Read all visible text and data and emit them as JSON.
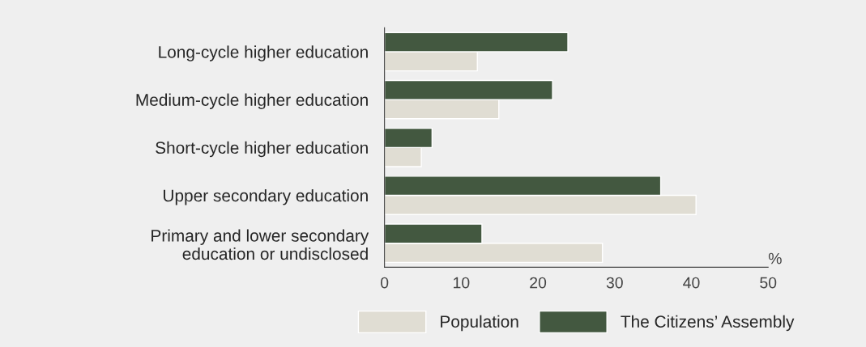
{
  "chart_data": {
    "type": "bar",
    "orientation": "horizontal",
    "categories": [
      "Long-cycle higher education",
      "Medium-cycle higher education",
      "Short-cycle higher education",
      "Upper secondary education",
      "Primary and lower secondary\neducation or undisclosed"
    ],
    "series": [
      {
        "name": "Population",
        "color": "#e0ddd3",
        "values": [
          12.1,
          14.9,
          4.8,
          40.6,
          28.4
        ]
      },
      {
        "name": "The Citizens’ Assembly",
        "color": "#435840",
        "values": [
          23.9,
          21.9,
          6.2,
          36.0,
          12.7
        ]
      }
    ],
    "xlabel": "%",
    "xlim": [
      0,
      50
    ],
    "xticks": [
      0,
      10,
      20,
      30,
      40,
      50
    ],
    "grid": false,
    "legend": "bottom"
  }
}
